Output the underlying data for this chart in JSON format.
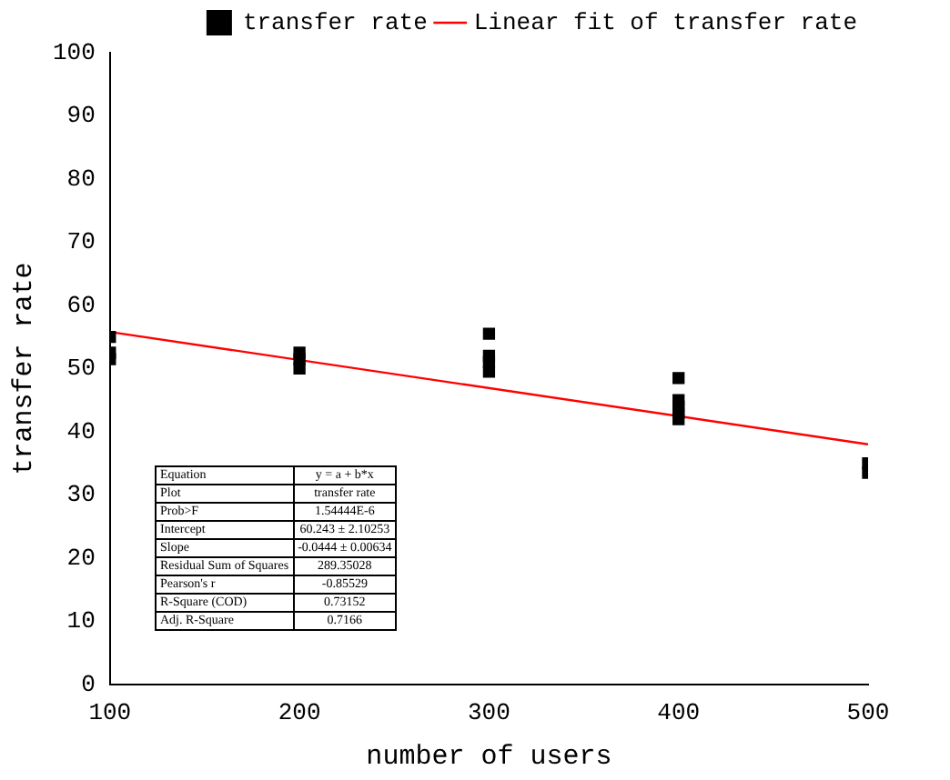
{
  "chart_data": {
    "type": "scatter",
    "xlabel": "number of users",
    "ylabel": "transfer rate",
    "xlim": [
      100,
      500
    ],
    "xticks": [
      100,
      200,
      300,
      400,
      500
    ],
    "ylim": [
      0,
      100
    ],
    "yticks": [
      0,
      10,
      20,
      30,
      40,
      50,
      60,
      70,
      80,
      90,
      100
    ],
    "grid": false,
    "legend": "top right",
    "marker": "square",
    "series": [
      {
        "name": "transfer rate",
        "color": "#000000",
        "x": [
          100,
          100,
          100,
          200,
          200,
          200,
          300,
          300,
          300,
          300,
          400,
          400,
          400,
          400,
          400,
          500,
          500
        ],
        "values": [
          55,
          52.5,
          51.5,
          52.5,
          51.5,
          50,
          55.5,
          52,
          51,
          49.5,
          48.5,
          45,
          44,
          43,
          42,
          35,
          33.5
        ]
      },
      {
        "name": "Linear fit of transfer rate",
        "type": "line",
        "color": "#ff0000",
        "marker": "none",
        "x": [
          100,
          500
        ],
        "values": [
          55.8,
          38.0
        ]
      }
    ],
    "annotations": [
      "Equation",
      "y = a + b*x",
      "Plot",
      "transfer rate",
      "Prob>F",
      "1.54444E-6",
      "Intercept",
      "60.243 ± 2.10253",
      "Slope",
      "-0.0444 ± 0.00634",
      "Residual Sum of Squares",
      "289.35028",
      "Pearson's r",
      "-0.85529",
      "R-Square (COD)",
      "0.73152",
      "Adj. R-Square",
      "0.7166"
    ]
  }
}
